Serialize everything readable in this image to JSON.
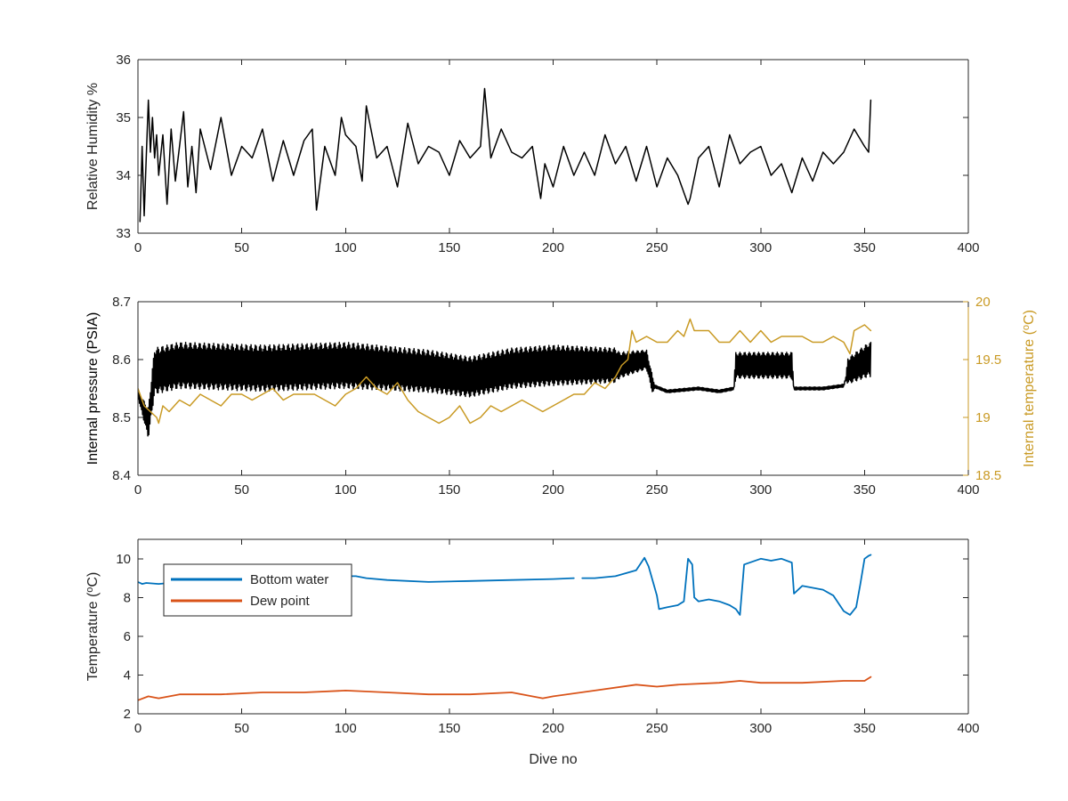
{
  "chart_data": [
    {
      "type": "line",
      "ylabel": "Relative Humidity %",
      "xlabel": "",
      "xlim": [
        0,
        400
      ],
      "ylim": [
        33,
        36
      ],
      "xticks": [
        0,
        50,
        100,
        150,
        200,
        250,
        300,
        350,
        400
      ],
      "yticks": [
        33,
        34,
        35,
        36
      ],
      "grid": false,
      "series": [
        {
          "color": "#000000",
          "x": [
            1,
            2,
            3,
            4,
            5,
            6,
            7,
            8,
            9,
            10,
            12,
            14,
            16,
            18,
            20,
            22,
            24,
            26,
            28,
            30,
            35,
            40,
            45,
            50,
            55,
            60,
            65,
            70,
            75,
            80,
            84,
            86,
            90,
            95,
            98,
            100,
            105,
            108,
            110,
            115,
            120,
            125,
            130,
            135,
            140,
            145,
            150,
            155,
            160,
            165,
            167,
            170,
            175,
            180,
            185,
            190,
            194,
            196,
            200,
            205,
            210,
            215,
            220,
            225,
            230,
            235,
            240,
            245,
            250,
            255,
            260,
            265,
            266,
            270,
            275,
            280,
            285,
            290,
            295,
            300,
            305,
            310,
            315,
            320,
            325,
            330,
            335,
            340,
            345,
            350,
            352,
            353
          ],
          "y": [
            33.2,
            34.5,
            33.3,
            34.3,
            35.3,
            34.4,
            35.0,
            34.3,
            34.7,
            34.0,
            34.7,
            33.5,
            34.8,
            33.9,
            34.5,
            35.1,
            33.8,
            34.5,
            33.7,
            34.8,
            34.1,
            35.0,
            34.0,
            34.5,
            34.3,
            34.8,
            33.9,
            34.6,
            34.0,
            34.6,
            34.8,
            33.4,
            34.5,
            34.0,
            35.0,
            34.7,
            34.5,
            33.9,
            35.2,
            34.3,
            34.5,
            33.8,
            34.9,
            34.2,
            34.5,
            34.4,
            34.0,
            34.6,
            34.3,
            34.5,
            35.5,
            34.3,
            34.8,
            34.4,
            34.3,
            34.5,
            33.6,
            34.2,
            33.8,
            34.5,
            34.0,
            34.4,
            34.0,
            34.7,
            34.2,
            34.5,
            33.9,
            34.5,
            33.8,
            34.3,
            34.0,
            33.5,
            33.6,
            34.3,
            34.5,
            33.8,
            34.7,
            34.2,
            34.4,
            34.5,
            34.0,
            34.2,
            33.7,
            34.3,
            33.9,
            34.4,
            34.2,
            34.4,
            34.8,
            34.5,
            34.4,
            35.3
          ]
        }
      ]
    },
    {
      "type": "line",
      "ylabel": "Internal pressure (PSIA)",
      "y2label": "Internal temperature (°C)",
      "xlabel": "",
      "xlim": [
        0,
        400
      ],
      "ylim": [
        8.4,
        8.7
      ],
      "y2lim": [
        18.5,
        20
      ],
      "xticks": [
        0,
        50,
        100,
        150,
        200,
        250,
        300,
        350,
        400
      ],
      "yticks": [
        8.4,
        8.5,
        8.6,
        8.7
      ],
      "y2ticks": [
        18.5,
        19,
        19.5,
        20
      ],
      "grid": false,
      "series": [
        {
          "axis": "left",
          "color": "#000000",
          "oscillating": [
            [
              0,
              8.54
            ],
            [
              5,
              8.49
            ],
            [
              8,
              8.58
            ],
            [
              20,
              8.59
            ],
            [
              60,
              8.585
            ],
            [
              100,
              8.59
            ],
            [
              140,
              8.58
            ],
            [
              160,
              8.57
            ],
            [
              180,
              8.585
            ],
            [
              200,
              8.59
            ],
            [
              232,
              8.59
            ],
            [
              238,
              8.595
            ],
            [
              245,
              8.6
            ],
            [
              248,
              8.555
            ],
            [
              255,
              8.545
            ],
            [
              270,
              8.55
            ],
            [
              280,
              8.545
            ],
            [
              287,
              8.55
            ],
            [
              288,
              8.59
            ],
            [
              300,
              8.59
            ],
            [
              315,
              8.59
            ],
            [
              316,
              8.55
            ],
            [
              330,
              8.55
            ],
            [
              340,
              8.555
            ],
            [
              342,
              8.58
            ],
            [
              352,
              8.6
            ]
          ],
          "amplitude": [
            [
              0,
              0.01
            ],
            [
              8,
              0.08
            ],
            [
              20,
              0.08
            ],
            [
              100,
              0.08
            ],
            [
              160,
              0.07
            ],
            [
              200,
              0.07
            ],
            [
              230,
              0.06
            ],
            [
              232,
              0.045
            ],
            [
              248,
              0.03
            ],
            [
              249,
              0.005
            ],
            [
              287,
              0.005
            ],
            [
              288,
              0.045
            ],
            [
              315,
              0.045
            ],
            [
              316,
              0.005
            ],
            [
              341,
              0.005
            ],
            [
              342,
              0.045
            ],
            [
              353,
              0.06
            ]
          ]
        },
        {
          "axis": "right",
          "color": "#C99A24",
          "x": [
            0,
            3,
            6,
            9,
            10,
            12,
            15,
            20,
            25,
            30,
            35,
            40,
            45,
            50,
            55,
            60,
            65,
            70,
            75,
            80,
            85,
            90,
            95,
            100,
            105,
            110,
            115,
            120,
            125,
            130,
            135,
            140,
            145,
            150,
            155,
            160,
            165,
            170,
            175,
            180,
            185,
            190,
            195,
            200,
            205,
            210,
            215,
            220,
            225,
            230,
            233,
            236,
            238,
            240,
            245,
            250,
            255,
            260,
            263,
            266,
            268,
            270,
            275,
            280,
            285,
            290,
            295,
            300,
            305,
            310,
            315,
            320,
            325,
            330,
            335,
            340,
            343,
            345,
            350,
            353
          ],
          "y": [
            19.25,
            19.1,
            19.05,
            19.0,
            18.95,
            19.1,
            19.05,
            19.15,
            19.1,
            19.2,
            19.15,
            19.1,
            19.2,
            19.2,
            19.15,
            19.2,
            19.25,
            19.15,
            19.2,
            19.2,
            19.2,
            19.15,
            19.1,
            19.2,
            19.25,
            19.35,
            19.25,
            19.2,
            19.3,
            19.15,
            19.05,
            19.0,
            18.95,
            19.0,
            19.1,
            18.95,
            19.0,
            19.1,
            19.05,
            19.1,
            19.15,
            19.1,
            19.05,
            19.1,
            19.15,
            19.2,
            19.2,
            19.3,
            19.25,
            19.35,
            19.45,
            19.5,
            19.75,
            19.65,
            19.7,
            19.65,
            19.65,
            19.75,
            19.7,
            19.85,
            19.75,
            19.75,
            19.75,
            19.65,
            19.65,
            19.75,
            19.65,
            19.75,
            19.65,
            19.7,
            19.7,
            19.7,
            19.65,
            19.65,
            19.7,
            19.65,
            19.55,
            19.75,
            19.8,
            19.75
          ]
        }
      ]
    },
    {
      "type": "line",
      "ylabel": "Temperature (°C)",
      "xlabel": "Dive no",
      "xlim": [
        0,
        400
      ],
      "ylim": [
        2,
        11
      ],
      "xticks": [
        0,
        50,
        100,
        150,
        200,
        250,
        300,
        350,
        400
      ],
      "yticks": [
        2,
        4,
        6,
        8,
        10
      ],
      "grid": false,
      "legend": "top-left",
      "series": [
        {
          "name": "Bottom water",
          "color": "#0072BD",
          "x": [
            0,
            2,
            4,
            10,
            20,
            50,
            80,
            100,
            105,
            110,
            120,
            140,
            160,
            180,
            200,
            210,
            null,
            214,
            220,
            230,
            240,
            244,
            246,
            250,
            251,
            255,
            260,
            263,
            265,
            267,
            268,
            270,
            275,
            280,
            285,
            288,
            290,
            292,
            300,
            305,
            310,
            315,
            316,
            320,
            330,
            335,
            340,
            343,
            346,
            348,
            350,
            352,
            353
          ],
          "y": [
            8.8,
            8.7,
            8.75,
            8.7,
            8.8,
            8.9,
            9.0,
            9.1,
            9.1,
            9.0,
            8.9,
            8.8,
            8.85,
            8.9,
            8.95,
            9.0,
            null,
            9.0,
            9.0,
            9.1,
            9.4,
            10.05,
            9.6,
            8.1,
            7.4,
            7.5,
            7.6,
            7.8,
            10.0,
            9.7,
            8.0,
            7.8,
            7.9,
            7.8,
            7.6,
            7.4,
            7.1,
            9.7,
            10.0,
            9.9,
            10.0,
            9.8,
            8.2,
            8.6,
            8.4,
            8.1,
            7.3,
            7.1,
            7.5,
            8.7,
            10.0,
            10.15,
            10.2
          ]
        },
        {
          "name": "Dew point",
          "color": "#D95319",
          "x": [
            0,
            5,
            10,
            20,
            40,
            60,
            80,
            100,
            120,
            140,
            160,
            180,
            195,
            200,
            220,
            240,
            250,
            260,
            280,
            290,
            300,
            320,
            340,
            350,
            353
          ],
          "y": [
            2.7,
            2.9,
            2.8,
            3.0,
            3.0,
            3.1,
            3.1,
            3.2,
            3.1,
            3.0,
            3.0,
            3.1,
            2.8,
            2.9,
            3.2,
            3.5,
            3.4,
            3.5,
            3.6,
            3.7,
            3.6,
            3.6,
            3.7,
            3.7,
            3.9
          ]
        }
      ]
    }
  ]
}
